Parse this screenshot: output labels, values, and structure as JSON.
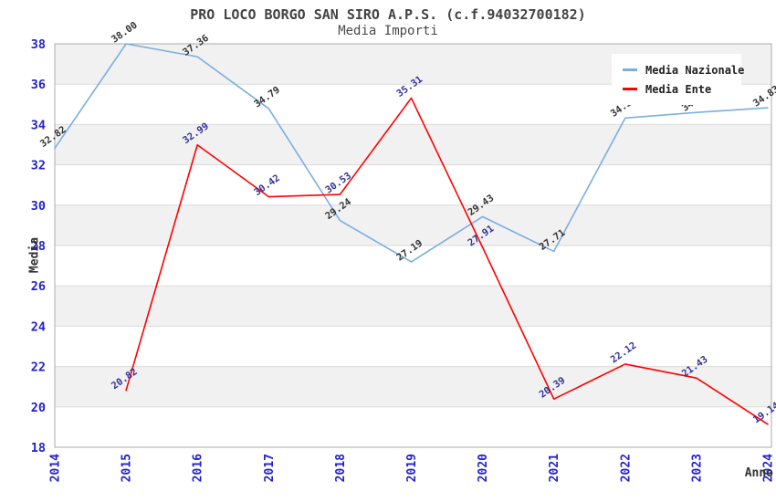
{
  "title": "PRO LOCO BORGO SAN SIRO A.P.S. (c.f.94032700182)",
  "subtitle": "Media Importi",
  "legend": {
    "items": [
      {
        "label": "Media Nazionale",
        "color": "#7AAEE3"
      },
      {
        "label": "Media Ente",
        "color": "#FF0000"
      }
    ]
  },
  "palette": {
    "band_gray": "#F1F1F1",
    "gridline": "#DBDBDB",
    "plot_border": "#ABABAB",
    "axis_tick_color": "#2222CC",
    "nazionale_label_color": "#333333",
    "ente_label_color": "#333399"
  },
  "chart_data": {
    "type": "line",
    "title": "PRO LOCO BORGO SAN SIRO A.P.S. (c.f.94032700182)",
    "subtitle": "Media Importi",
    "xlabel": "Anno",
    "ylabel": "Media",
    "x": [
      2014,
      2015,
      2016,
      2017,
      2018,
      2019,
      2020,
      2021,
      2022,
      2023,
      2024
    ],
    "ylim": [
      18,
      38
    ],
    "ytick_step": 2,
    "grid": true,
    "band_fill_alternating": true,
    "legend_position": "top-right",
    "series": [
      {
        "name": "Media Nazionale",
        "color": "#7AAEE3",
        "label_color": "#333333",
        "x": [
          2014,
          2015,
          2016,
          2017,
          2018,
          2019,
          2020,
          2021,
          2022,
          2023,
          2024
        ],
        "values": [
          32.82,
          38.0,
          37.36,
          34.79,
          29.24,
          27.19,
          29.43,
          27.71,
          34.32,
          34.6,
          34.83
        ]
      },
      {
        "name": "Media Ente",
        "color": "#FF0000",
        "label_color": "#333399",
        "x": [
          2015,
          2016,
          2017,
          2018,
          2019,
          2020,
          2021,
          2022,
          2023,
          2024
        ],
        "values": [
          20.82,
          32.99,
          30.42,
          30.53,
          35.31,
          27.91,
          20.39,
          22.12,
          21.43,
          19.14
        ]
      }
    ]
  }
}
